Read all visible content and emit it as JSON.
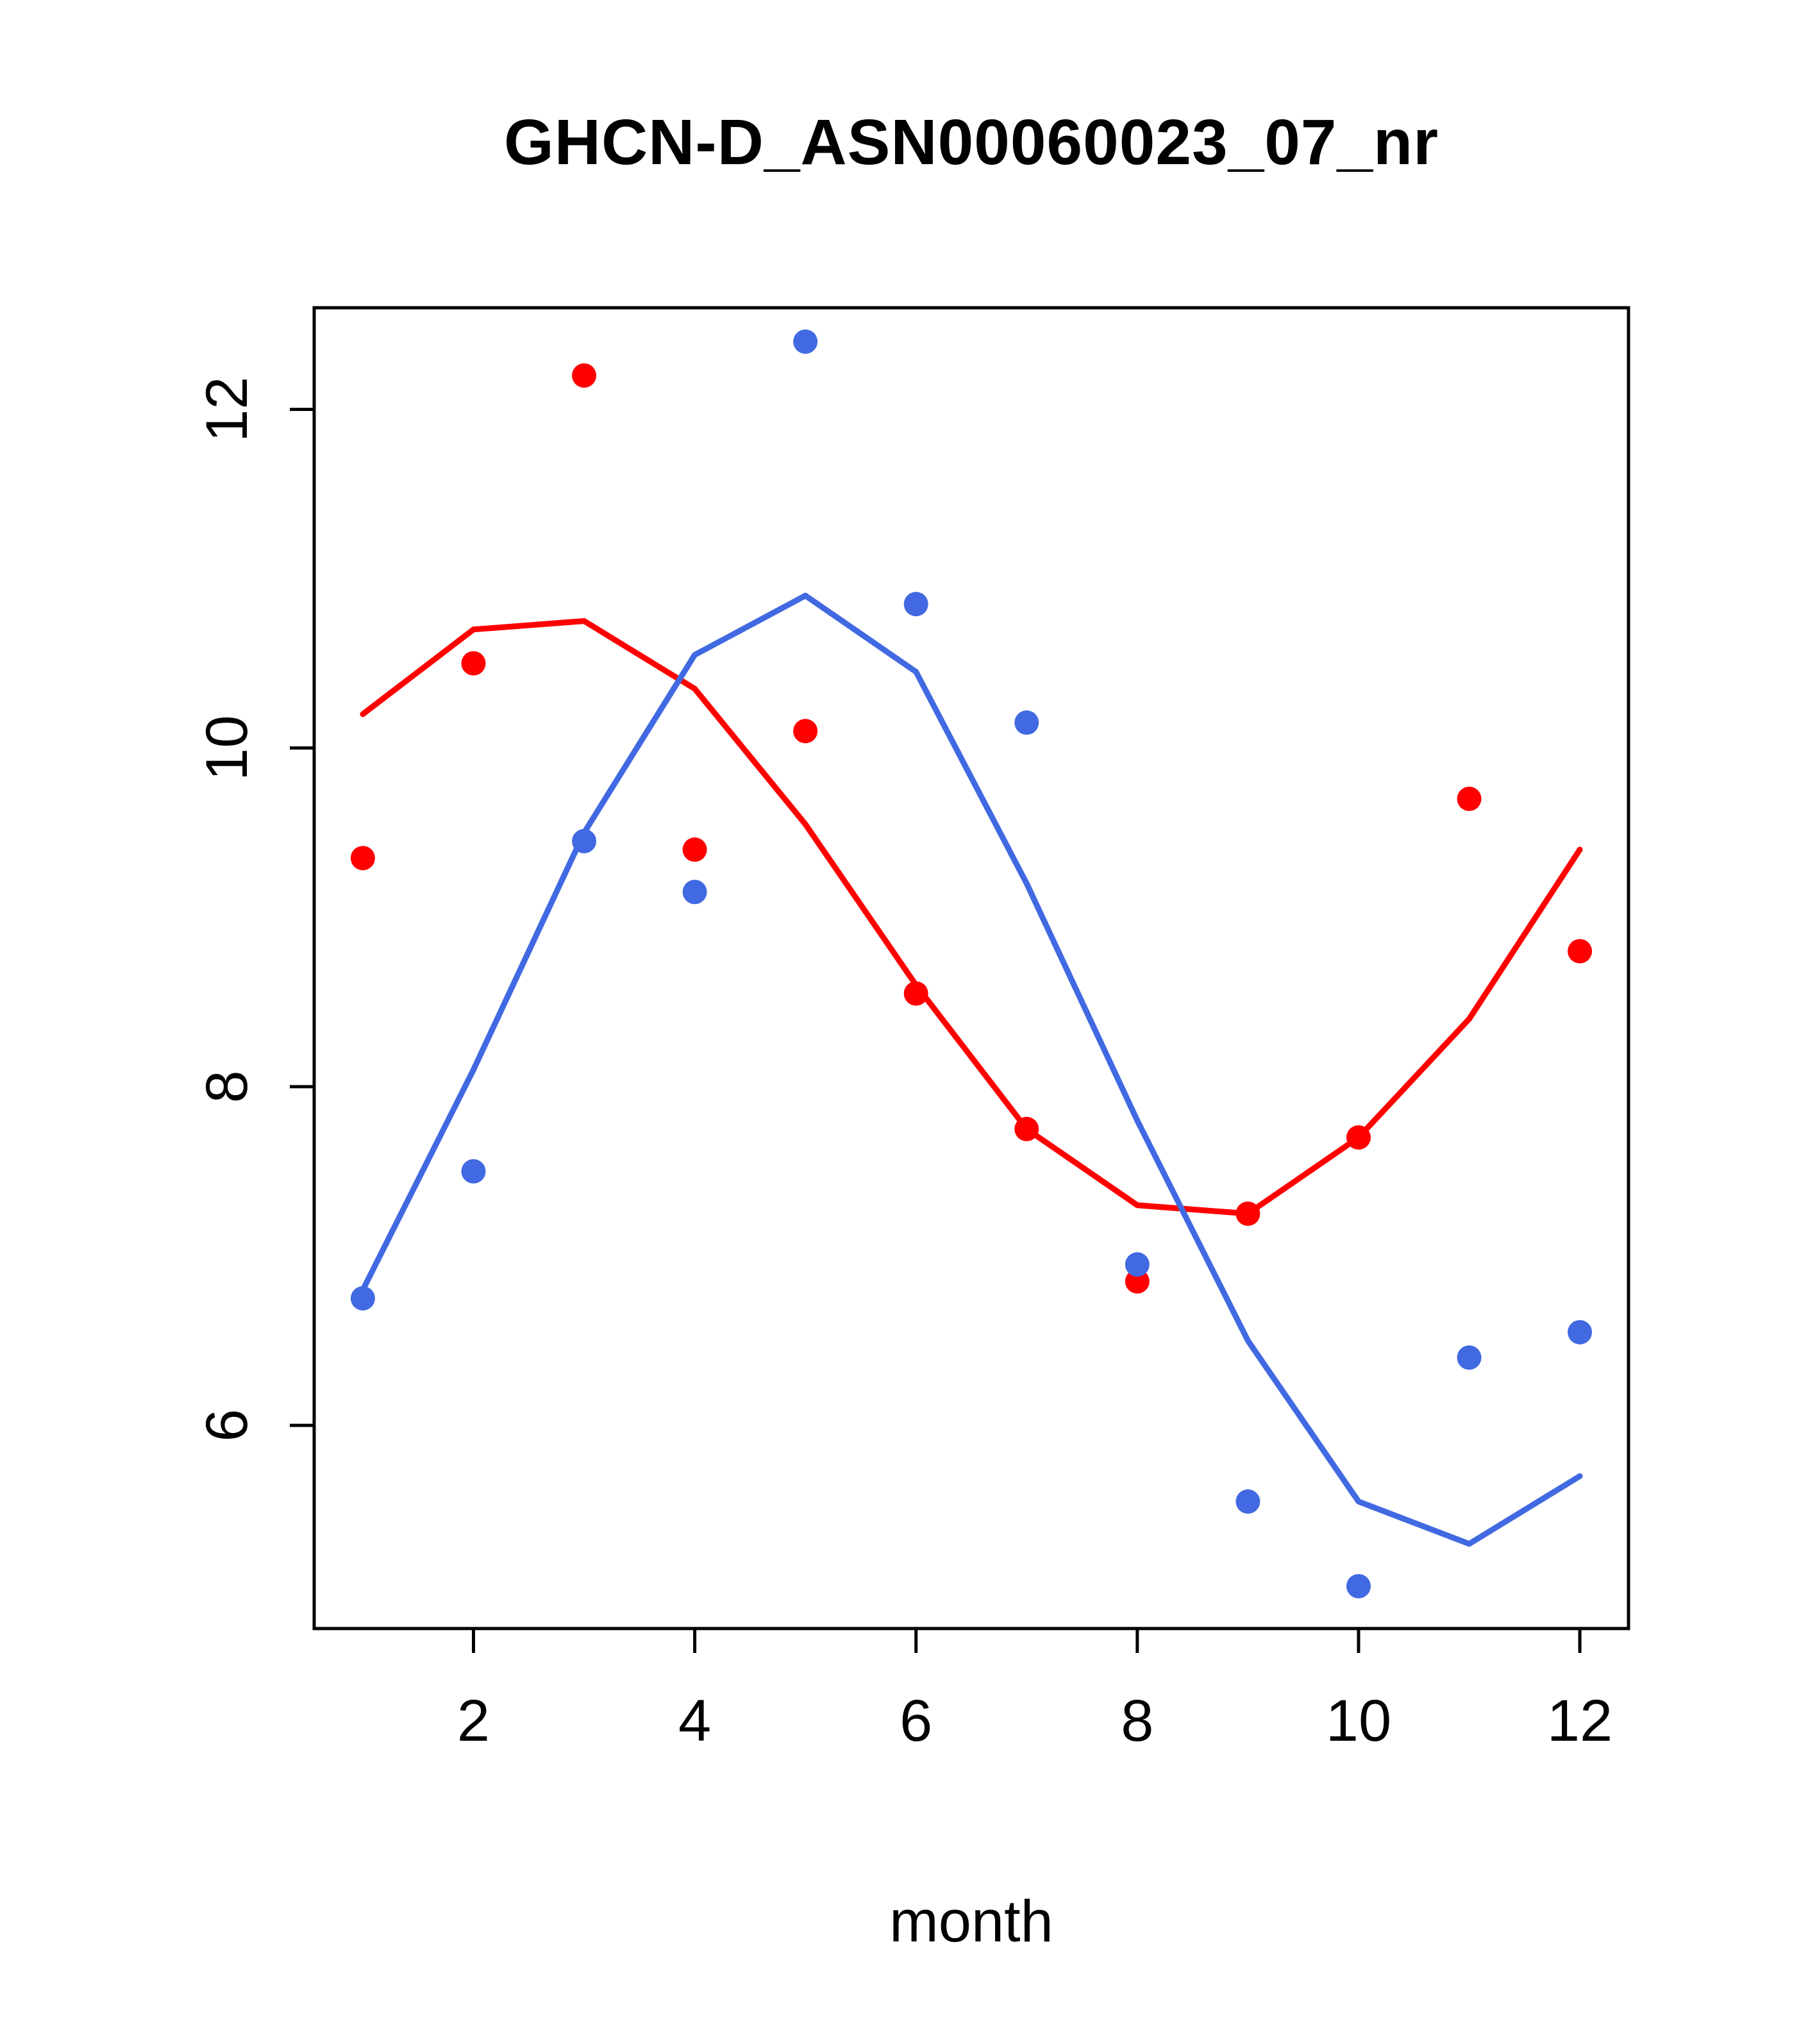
{
  "figure": {
    "background": "#ffffff",
    "axis_color": "#000000"
  },
  "chart_data": {
    "type": "line",
    "title": "GHCN-D_ASN00060023_07_nr",
    "xlabel": "month",
    "ylabel": "",
    "xlim": [
      0.56,
      12.44
    ],
    "ylim": [
      4.8,
      12.6
    ],
    "x_ticks": [
      2,
      4,
      6,
      8,
      10,
      12
    ],
    "y_ticks": [
      6,
      8,
      10,
      12
    ],
    "grid": false,
    "legend": false,
    "x": [
      1,
      2,
      3,
      4,
      5,
      6,
      7,
      8,
      9,
      10,
      11,
      12
    ],
    "series": [
      {
        "name": "red-line",
        "kind": "line",
        "color": "#ff0000",
        "values": [
          10.2,
          10.7,
          10.75,
          10.35,
          9.55,
          8.6,
          7.75,
          7.3,
          7.25,
          7.7,
          8.4,
          9.4
        ]
      },
      {
        "name": "blue-line",
        "kind": "line",
        "color": "#4169e1",
        "values": [
          6.8,
          8.1,
          9.5,
          10.55,
          10.9,
          10.45,
          9.2,
          7.8,
          6.5,
          5.55,
          5.3,
          5.7
        ]
      },
      {
        "name": "red-points",
        "kind": "points",
        "color": "#ff0000",
        "values": [
          9.35,
          10.5,
          12.2,
          9.4,
          10.1,
          8.55,
          7.75,
          6.85,
          7.25,
          7.7,
          9.7,
          8.8
        ]
      },
      {
        "name": "blue-points",
        "kind": "points",
        "color": "#4169e1",
        "values": [
          6.75,
          7.5,
          9.45,
          9.15,
          12.4,
          10.85,
          10.15,
          6.95,
          5.55,
          5.05,
          6.4,
          6.55
        ]
      }
    ]
  }
}
